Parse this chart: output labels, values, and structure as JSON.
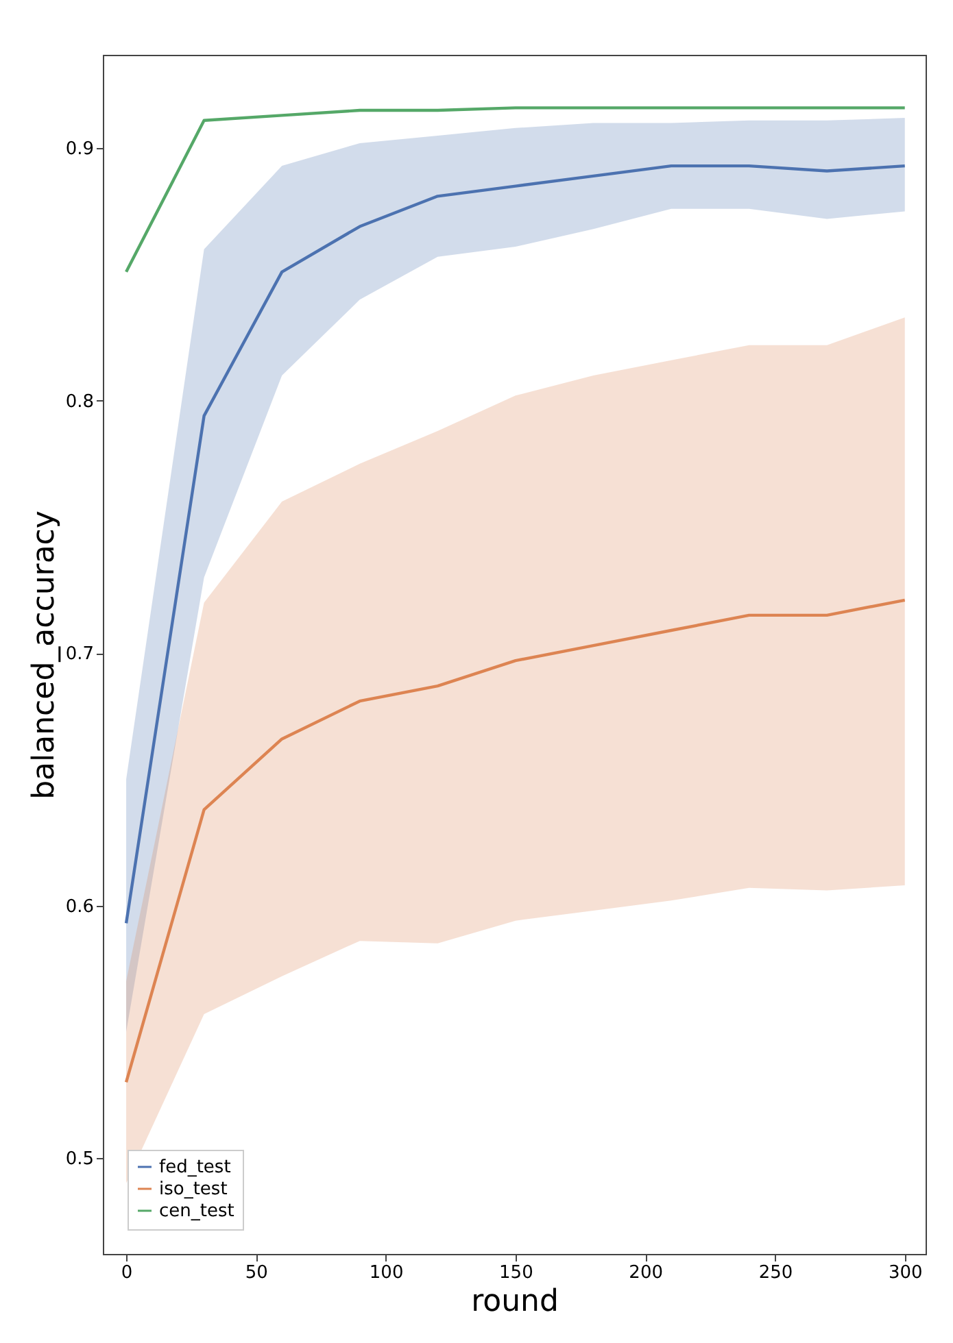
{
  "chart_data": {
    "type": "line",
    "xlabel": "round",
    "ylabel": "balanced_accuracy",
    "x": [
      0,
      30,
      60,
      90,
      120,
      150,
      180,
      210,
      240,
      270,
      300
    ],
    "series": [
      {
        "name": "fed_test",
        "color": "#4c72b0",
        "values": [
          0.593,
          0.794,
          0.851,
          0.869,
          0.881,
          0.885,
          0.889,
          0.893,
          0.893,
          0.891,
          0.893
        ],
        "lower": [
          0.55,
          0.73,
          0.81,
          0.84,
          0.857,
          0.861,
          0.868,
          0.876,
          0.876,
          0.872,
          0.875
        ],
        "upper": [
          0.65,
          0.86,
          0.893,
          0.902,
          0.905,
          0.908,
          0.91,
          0.91,
          0.911,
          0.911,
          0.912
        ]
      },
      {
        "name": "iso_test",
        "color": "#dd8452",
        "values": [
          0.53,
          0.638,
          0.666,
          0.681,
          0.687,
          0.697,
          0.703,
          0.709,
          0.715,
          0.715,
          0.721
        ],
        "lower": [
          0.49,
          0.557,
          0.572,
          0.586,
          0.585,
          0.594,
          0.598,
          0.602,
          0.607,
          0.606,
          0.608
        ],
        "upper": [
          0.57,
          0.72,
          0.76,
          0.775,
          0.788,
          0.802,
          0.81,
          0.816,
          0.822,
          0.822,
          0.833
        ]
      },
      {
        "name": "cen_test",
        "color": "#55a868",
        "values": [
          0.851,
          0.911,
          0.913,
          0.915,
          0.915,
          0.916,
          0.916,
          0.916,
          0.916,
          0.916,
          0.916
        ]
      }
    ],
    "xlim": [
      -9,
      308
    ],
    "xticks": [
      0,
      50,
      100,
      150,
      200,
      250,
      300
    ],
    "ylim": [
      0.462,
      0.937
    ],
    "yticks": [
      0.5,
      0.6,
      0.7,
      0.8,
      0.9
    ],
    "grid": false,
    "legend": "bottom left",
    "line_style": "solid",
    "marker": "none"
  }
}
